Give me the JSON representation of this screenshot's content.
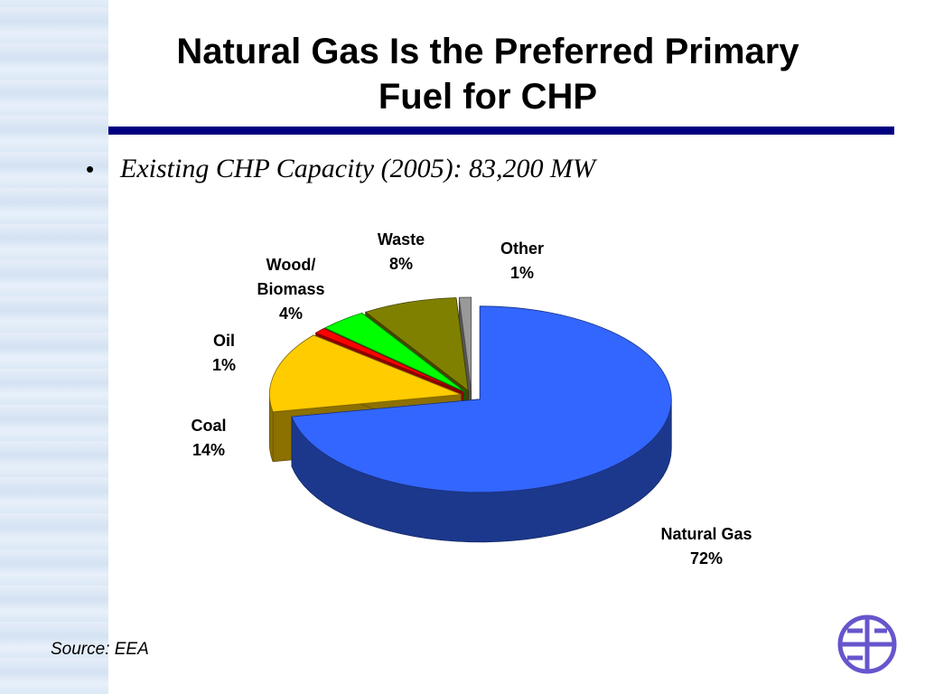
{
  "title": "Natural Gas Is the Preferred Primary Fuel for CHP",
  "subtitle": "Existing CHP Capacity (2005): 83,200 MW",
  "source": "Source:  EEA",
  "chart_data": {
    "type": "pie",
    "categories": [
      "Natural Gas",
      "Coal",
      "Oil",
      "Wood/ Biomass",
      "Waste",
      "Other"
    ],
    "values": [
      72,
      14,
      1,
      4,
      8,
      1
    ],
    "value_labels": [
      "72%",
      "14%",
      "1%",
      "4%",
      "8%",
      "1%"
    ],
    "colors": [
      "#3366ff",
      "#ffcc00",
      "#ff0000",
      "#00ff00",
      "#808000",
      "#999999"
    ]
  }
}
